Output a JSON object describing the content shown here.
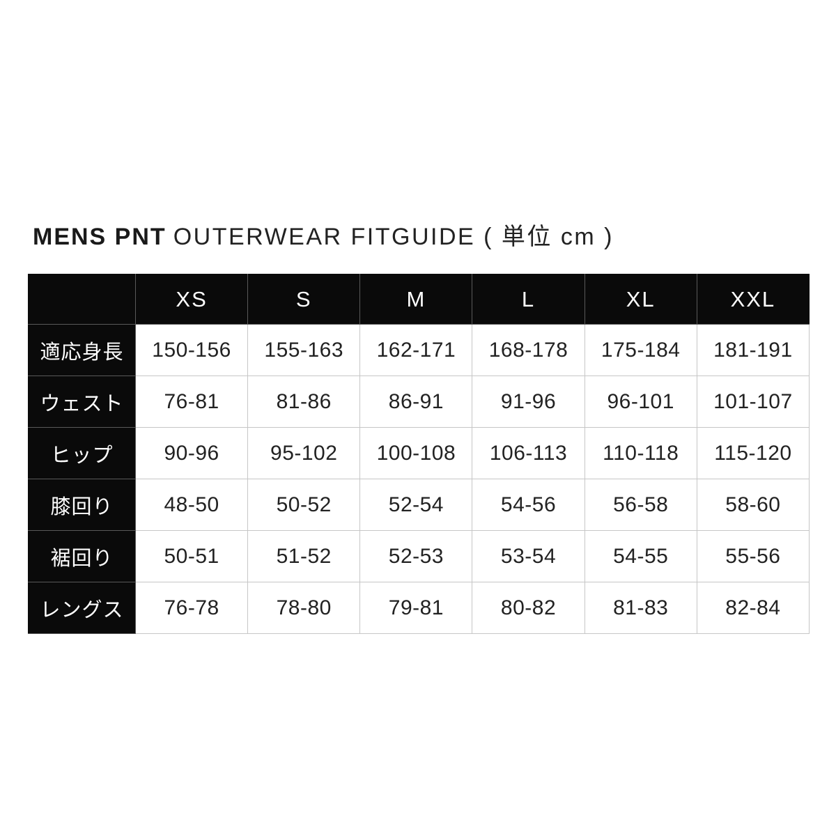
{
  "title": {
    "brand": "MENS PNT",
    "rest": "OUTERWEAR FITGUIDE ( 単位 cm )"
  },
  "chart_data": {
    "type": "table",
    "title": "MENS PNT OUTERWEAR FITGUIDE",
    "unit_note": "単位 cm",
    "columns": [
      "XS",
      "S",
      "M",
      "L",
      "XL",
      "XXL"
    ],
    "rows": [
      {
        "label": "適応身長",
        "values": [
          "150-156",
          "155-163",
          "162-171",
          "168-178",
          "175-184",
          "181-191"
        ]
      },
      {
        "label": "ウェスト",
        "values": [
          "76-81",
          "81-86",
          "86-91",
          "91-96",
          "96-101",
          "101-107"
        ]
      },
      {
        "label": "ヒップ",
        "values": [
          "90-96",
          "95-102",
          "100-108",
          "106-113",
          "110-118",
          "115-120"
        ]
      },
      {
        "label": "膝回り",
        "values": [
          "48-50",
          "50-52",
          "52-54",
          "54-56",
          "56-58",
          "58-60"
        ]
      },
      {
        "label": "裾回り",
        "values": [
          "50-51",
          "51-52",
          "52-53",
          "53-54",
          "54-55",
          "55-56"
        ]
      },
      {
        "label": "レングス",
        "values": [
          "76-78",
          "78-80",
          "79-81",
          "80-82",
          "81-83",
          "82-84"
        ]
      }
    ]
  },
  "colors": {
    "header_bg": "#0a0a0a",
    "header_text": "#ffffff",
    "cell_text": "#222222",
    "grid_line": "#c6c6c6",
    "background": "#ffffff"
  }
}
